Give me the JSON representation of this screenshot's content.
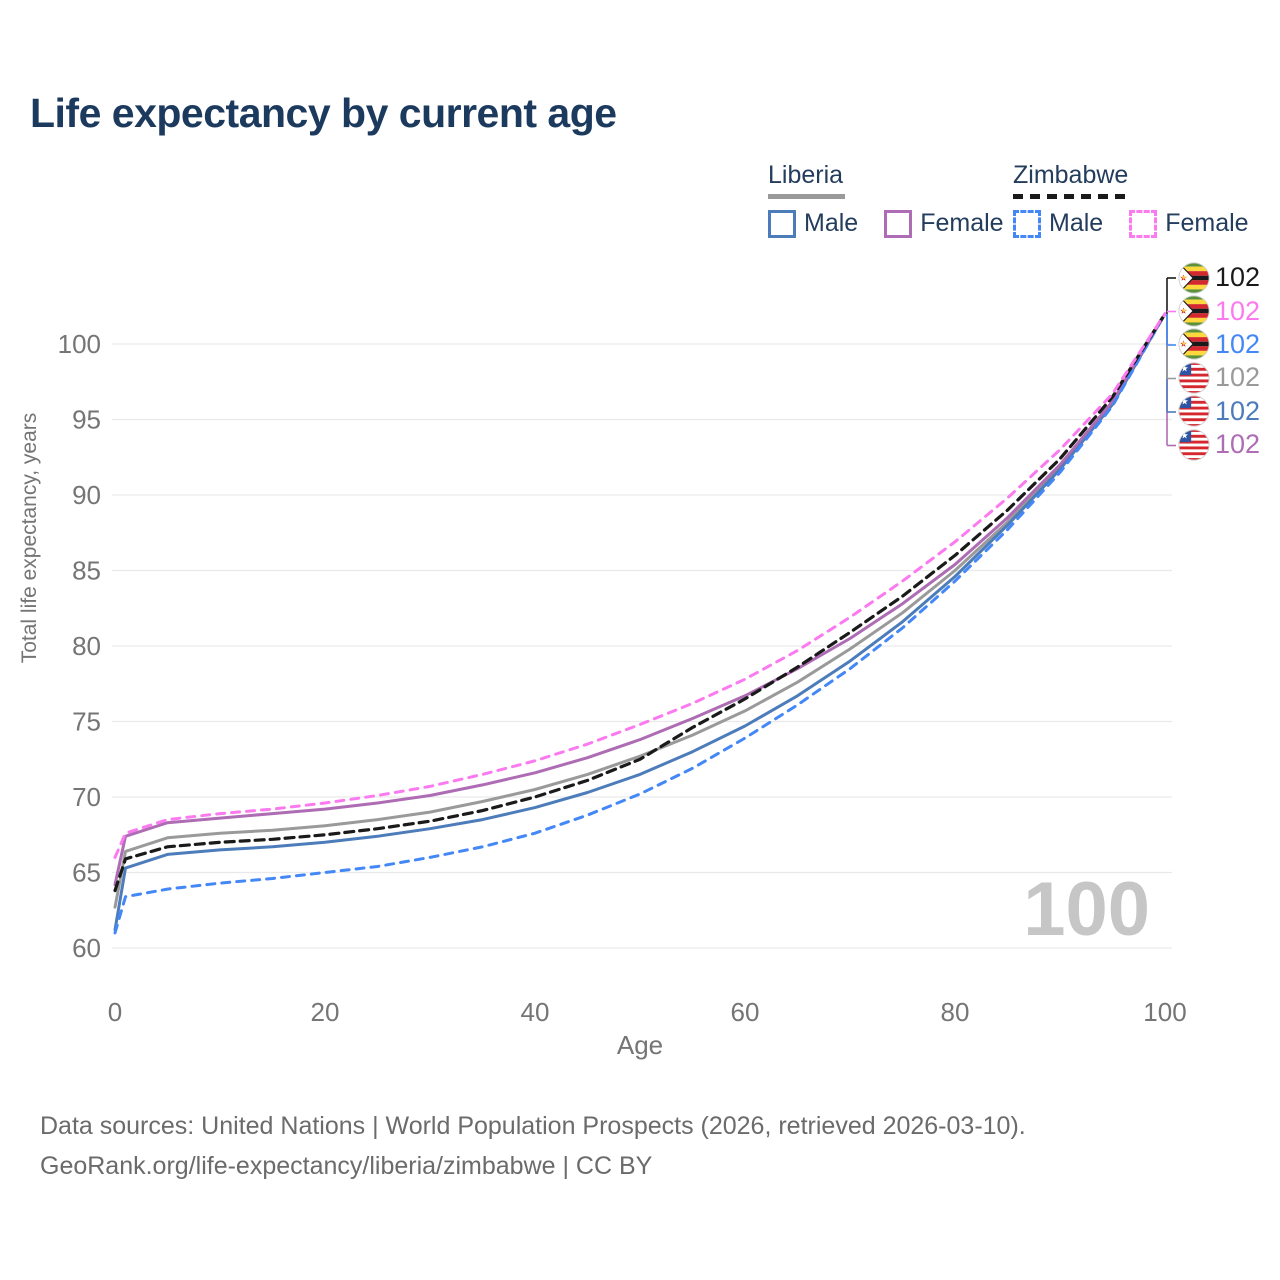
{
  "title": "Life expectancy by current age",
  "colors": {
    "title": "#1c3a5e",
    "grid": "#e9e9e9",
    "tick": "#757575",
    "counter": "#c6c6c6",
    "footer": "#6b6b6b",
    "legend_text": "#243d5c"
  },
  "legend": {
    "groups": [
      {
        "name": "Liberia",
        "line_style": "solid",
        "line_color": "#9a9a9a",
        "items": [
          {
            "label": "Male",
            "color": "#4c7cba"
          },
          {
            "label": "Female",
            "color": "#ad6cb3"
          }
        ]
      },
      {
        "name": "Zimbabwe",
        "line_style": "dashed",
        "line_color": "#1a1a1a",
        "items": [
          {
            "label": "Male",
            "color": "#4487f6"
          },
          {
            "label": "Female",
            "color": "#fb7af0"
          }
        ]
      }
    ]
  },
  "age_counter": "100",
  "end_labels": [
    {
      "country": "Zimbabwe",
      "flag": "zw",
      "value": "102",
      "color": "#1a1a1a"
    },
    {
      "country": "Zimbabwe",
      "flag": "zw",
      "value": "102",
      "color": "#fb7af0"
    },
    {
      "country": "Zimbabwe",
      "flag": "zw",
      "value": "102",
      "color": "#4487f6"
    },
    {
      "country": "Liberia",
      "flag": "lr",
      "value": "102",
      "color": "#9a9a9a"
    },
    {
      "country": "Liberia",
      "flag": "lr",
      "value": "102",
      "color": "#4c7cba"
    },
    {
      "country": "Liberia",
      "flag": "lr",
      "value": "102",
      "color": "#ad6cb3"
    }
  ],
  "footer": {
    "line1": "Data sources: United Nations | World Population Prospects (2026, retrieved 2026-03-10).",
    "line2": "GeoRank.org/life-expectancy/liberia/zimbabwe | CC BY"
  },
  "chart_data": {
    "type": "line",
    "title": "Life expectancy by current age",
    "xlabel": "Age",
    "ylabel": "Total life expectancy, years",
    "xlim": [
      0,
      100
    ],
    "ylim": [
      58,
      104
    ],
    "xticks": [
      0,
      20,
      40,
      60,
      80,
      100
    ],
    "yticks": [
      60,
      65,
      70,
      75,
      80,
      85,
      90,
      95,
      100
    ],
    "grid": "horizontal",
    "legend_position": "top-right",
    "x": [
      0,
      1,
      5,
      10,
      15,
      20,
      25,
      30,
      35,
      40,
      45,
      50,
      55,
      60,
      65,
      70,
      75,
      80,
      85,
      90,
      95,
      100
    ],
    "series": [
      {
        "name": "Liberia Both sexes",
        "color": "#9a9a9a",
        "dash": "solid",
        "values": [
          62.7,
          66.4,
          67.3,
          67.6,
          67.8,
          68.1,
          68.5,
          69.0,
          69.7,
          70.5,
          71.5,
          72.7,
          74.1,
          75.7,
          77.6,
          79.8,
          82.2,
          85.0,
          88.2,
          91.9,
          96.1,
          102
        ]
      },
      {
        "name": "Liberia Male",
        "color": "#4c7cba",
        "dash": "solid",
        "values": [
          61.2,
          65.3,
          66.2,
          66.5,
          66.7,
          67.0,
          67.4,
          67.9,
          68.5,
          69.3,
          70.3,
          71.5,
          73.0,
          74.7,
          76.7,
          79.0,
          81.6,
          84.6,
          88.0,
          91.7,
          96.0,
          102
        ]
      },
      {
        "name": "Liberia Female",
        "color": "#ad6cb3",
        "dash": "solid",
        "values": [
          64.2,
          67.4,
          68.3,
          68.6,
          68.9,
          69.2,
          69.6,
          70.1,
          70.8,
          71.6,
          72.6,
          73.8,
          75.2,
          76.7,
          78.5,
          80.5,
          82.8,
          85.4,
          88.5,
          92.0,
          96.2,
          102
        ]
      },
      {
        "name": "Zimbabwe Male",
        "color": "#4487f6",
        "dash": "dashed",
        "values": [
          61.0,
          63.4,
          63.9,
          64.3,
          64.6,
          65.0,
          65.4,
          66.0,
          66.7,
          67.6,
          68.8,
          70.2,
          71.9,
          73.9,
          76.1,
          78.5,
          81.2,
          84.3,
          87.7,
          91.5,
          95.9,
          102
        ]
      },
      {
        "name": "Zimbabwe Both sexes",
        "color": "#1a1a1a",
        "dash": "dashed",
        "values": [
          63.8,
          65.9,
          66.7,
          67.0,
          67.2,
          67.5,
          67.9,
          68.4,
          69.1,
          70.0,
          71.1,
          72.5,
          74.6,
          76.5,
          78.6,
          80.9,
          83.3,
          86.0,
          89.0,
          92.4,
          96.5,
          102
        ]
      },
      {
        "name": "Zimbabwe Female",
        "color": "#fb7af0",
        "dash": "dashed",
        "values": [
          66.0,
          67.6,
          68.5,
          68.9,
          69.2,
          69.6,
          70.1,
          70.7,
          71.5,
          72.4,
          73.5,
          74.8,
          76.2,
          77.8,
          79.7,
          81.9,
          84.3,
          86.9,
          89.8,
          93.0,
          96.7,
          102
        ]
      }
    ]
  }
}
